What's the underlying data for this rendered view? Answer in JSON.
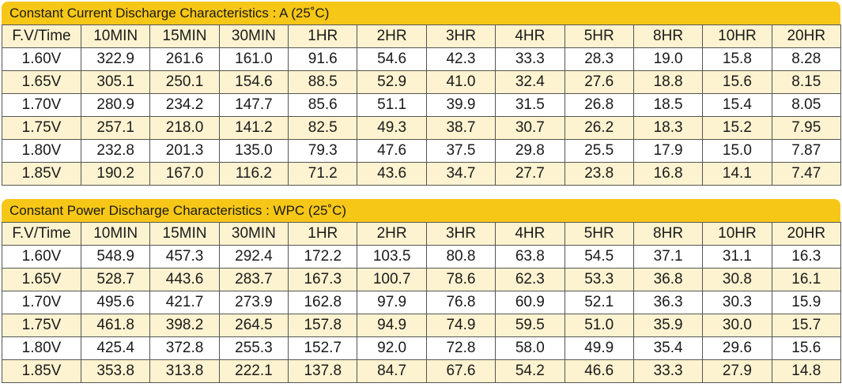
{
  "current_table": {
    "title": "Constant Current Discharge Characteristics : A (25˚C)",
    "headers": [
      "F.V/Time",
      "10MIN",
      "15MIN",
      "30MIN",
      "1HR",
      "2HR",
      "3HR",
      "4HR",
      "5HR",
      "8HR",
      "10HR",
      "20HR"
    ],
    "rows": [
      [
        "1.60V",
        "322.9",
        "261.6",
        "161.0",
        "91.6",
        "54.6",
        "42.3",
        "33.3",
        "28.3",
        "19.0",
        "15.8",
        "8.28"
      ],
      [
        "1.65V",
        "305.1",
        "250.1",
        "154.6",
        "88.5",
        "52.9",
        "41.0",
        "32.4",
        "27.6",
        "18.8",
        "15.6",
        "8.15"
      ],
      [
        "1.70V",
        "280.9",
        "234.2",
        "147.7",
        "85.6",
        "51.1",
        "39.9",
        "31.5",
        "26.8",
        "18.5",
        "15.4",
        "8.05"
      ],
      [
        "1.75V",
        "257.1",
        "218.0",
        "141.2",
        "82.5",
        "49.3",
        "38.7",
        "30.7",
        "26.2",
        "18.3",
        "15.2",
        "7.95"
      ],
      [
        "1.80V",
        "232.8",
        "201.3",
        "135.0",
        "79.3",
        "47.6",
        "37.5",
        "29.8",
        "25.5",
        "17.9",
        "15.0",
        "7.87"
      ],
      [
        "1.85V",
        "190.2",
        "167.0",
        "116.2",
        "71.2",
        "43.6",
        "34.7",
        "27.7",
        "23.8",
        "16.8",
        "14.1",
        "7.47"
      ]
    ]
  },
  "power_table": {
    "title": "Constant Power Discharge Characteristics : WPC (25˚C)",
    "headers": [
      "F.V/Time",
      "10MIN",
      "15MIN",
      "30MIN",
      "1HR",
      "2HR",
      "3HR",
      "4HR",
      "5HR",
      "8HR",
      "10HR",
      "20HR"
    ],
    "rows": [
      [
        "1.60V",
        "548.9",
        "457.3",
        "292.4",
        "172.2",
        "103.5",
        "80.8",
        "63.8",
        "54.5",
        "37.1",
        "31.1",
        "16.3"
      ],
      [
        "1.65V",
        "528.7",
        "443.6",
        "283.7",
        "167.3",
        "100.7",
        "78.6",
        "62.3",
        "53.3",
        "36.8",
        "30.8",
        "16.1"
      ],
      [
        "1.70V",
        "495.6",
        "421.7",
        "273.9",
        "162.8",
        "97.9",
        "76.8",
        "60.9",
        "52.1",
        "36.3",
        "30.3",
        "15.9"
      ],
      [
        "1.75V",
        "461.8",
        "398.2",
        "264.5",
        "157.8",
        "94.9",
        "74.9",
        "59.5",
        "51.0",
        "35.9",
        "30.0",
        "15.7"
      ],
      [
        "1.80V",
        "425.4",
        "372.8",
        "255.3",
        "152.7",
        "92.0",
        "72.8",
        "58.0",
        "49.9",
        "35.4",
        "29.6",
        "15.6"
      ],
      [
        "1.85V",
        "353.8",
        "313.8",
        "222.1",
        "137.8",
        "84.7",
        "67.6",
        "54.2",
        "46.6",
        "33.3",
        "27.9",
        "14.8"
      ]
    ]
  },
  "colors": {
    "title_bar": "#f7c718",
    "row_tint": "#fdf3d0",
    "border": "#555555"
  }
}
